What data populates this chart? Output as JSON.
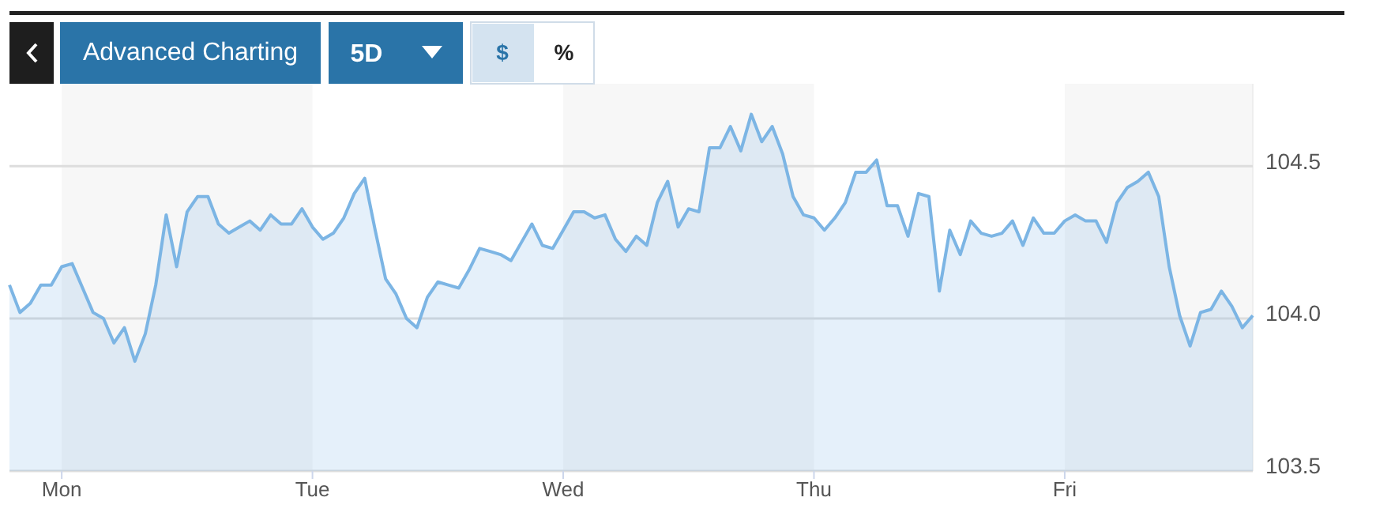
{
  "chart_data": {
    "type": "area",
    "annotations": [
      "Advanced Charting",
      "5D",
      "$",
      "%"
    ],
    "categories": [
      null,
      null,
      null,
      null,
      null,
      "Mon",
      null,
      null,
      null,
      null,
      null,
      null,
      null,
      null,
      null,
      null,
      null,
      null,
      null,
      null,
      null,
      null,
      null,
      null,
      null,
      null,
      null,
      null,
      null,
      "Tue",
      null,
      null,
      null,
      null,
      null,
      null,
      null,
      null,
      null,
      null,
      null,
      null,
      null,
      null,
      null,
      null,
      null,
      null,
      null,
      null,
      null,
      null,
      null,
      "Wed",
      null,
      null,
      null,
      null,
      null,
      null,
      null,
      null,
      null,
      null,
      null,
      null,
      null,
      null,
      null,
      null,
      null,
      null,
      null,
      null,
      null,
      null,
      null,
      "Thu",
      null,
      null,
      null,
      null,
      null,
      null,
      null,
      null,
      null,
      null,
      null,
      null,
      null,
      null,
      null,
      null,
      null,
      null,
      null,
      null,
      null,
      null,
      null,
      "Fri",
      null,
      null,
      null,
      null,
      null,
      null,
      null,
      null,
      null,
      null,
      null,
      null,
      null,
      null,
      null,
      null,
      null,
      null
    ],
    "series": [
      {
        "color": "#7cb5e4",
        "values": [
          104.11,
          104.02,
          104.05,
          104.11,
          104.11,
          104.17,
          104.18,
          104.1,
          104.02,
          104.0,
          103.92,
          103.97,
          103.86,
          103.95,
          104.11,
          104.34,
          104.17,
          104.35,
          104.4,
          104.4,
          104.31,
          104.28,
          104.3,
          104.32,
          104.29,
          104.34,
          104.31,
          104.31,
          104.36,
          104.3,
          104.26,
          104.28,
          104.33,
          104.41,
          104.46,
          104.29,
          104.13,
          104.08,
          104.0,
          103.97,
          104.07,
          104.12,
          104.11,
          104.1,
          104.16,
          104.23,
          104.22,
          104.21,
          104.19,
          104.25,
          104.31,
          104.24,
          104.23,
          104.29,
          104.35,
          104.35,
          104.33,
          104.34,
          104.26,
          104.22,
          104.27,
          104.24,
          104.38,
          104.45,
          104.3,
          104.36,
          104.35,
          104.56,
          104.56,
          104.63,
          104.55,
          104.67,
          104.58,
          104.63,
          104.54,
          104.4,
          104.34,
          104.33,
          104.29,
          104.33,
          104.38,
          104.48,
          104.48,
          104.52,
          104.37,
          104.37,
          104.27,
          104.41,
          104.4,
          104.09,
          104.29,
          104.21,
          104.32,
          104.28,
          104.27,
          104.28,
          104.32,
          104.24,
          104.33,
          104.28,
          104.28,
          104.32,
          104.34,
          104.32,
          104.32,
          104.25,
          104.38,
          104.43,
          104.45,
          104.48,
          104.4,
          104.17,
          104.01,
          103.91,
          104.02,
          104.03,
          104.09,
          104.04,
          103.97,
          104.01
        ]
      }
    ],
    "ylim": [
      103.5,
      104.77
    ],
    "yticks": [
      103.5,
      {
        "value": 104,
        "label": "104.0"
      },
      104.5
    ],
    "grid": "y",
    "marker": "none",
    "line_style": "solid"
  }
}
